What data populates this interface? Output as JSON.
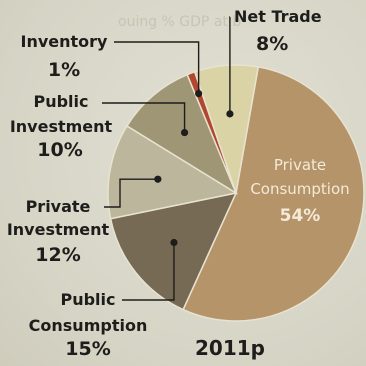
{
  "chart_data": {
    "type": "pie",
    "year": "2011p",
    "slices": [
      {
        "name": "Private Consumption",
        "value": 54,
        "label": "54%",
        "color": "#b5946a"
      },
      {
        "name": "Public Consumption",
        "value": 15,
        "label": "15%",
        "color": "#766a55"
      },
      {
        "name": "Private Investment",
        "value": 12,
        "label": "12%",
        "color": "#bcb79c"
      },
      {
        "name": "Public Investment",
        "value": 10,
        "label": "10%",
        "color": "#9e9674"
      },
      {
        "name": "Inventory",
        "value": 1,
        "label": "1%",
        "color": "#b0472e"
      },
      {
        "name": "Net Trade",
        "value": 8,
        "label": "8%",
        "color": "#d9d3a6"
      }
    ]
  }
}
